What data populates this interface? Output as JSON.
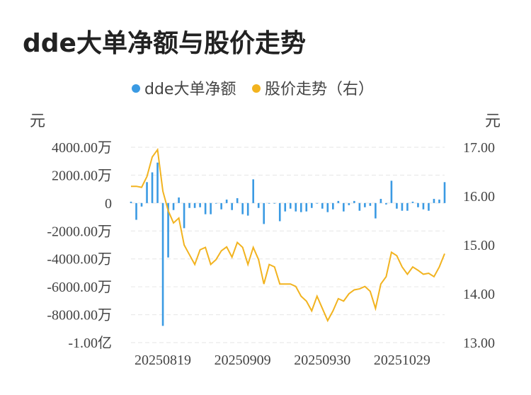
{
  "chart_data": {
    "type": "bar+line",
    "title": "dde大单净额与股价走势",
    "legend": [
      {
        "name": "dde大单净额",
        "color": "#3a9ae3"
      },
      {
        "name": "股价走势（右）",
        "color": "#f2b31f"
      }
    ],
    "left_unit": "元",
    "right_unit": "元",
    "left_ticks": [
      "4000.00万",
      "2000.00万",
      "0",
      "-2000.00万",
      "-4000.00万",
      "-6000.00万",
      "-8000.00万",
      "-1.00亿"
    ],
    "left_range_wan": [
      -10000,
      4000
    ],
    "right_ticks": [
      "17.00",
      "16.00",
      "15.00",
      "14.00",
      "13.00"
    ],
    "right_range": [
      13.0,
      17.0
    ],
    "x_tick_labels": [
      "20250819",
      "20250909",
      "20250930",
      "20251029"
    ],
    "x_tick_indices": [
      6,
      21,
      36,
      51
    ],
    "series": [
      {
        "name": "dde大单净额",
        "unit": "万元",
        "values": [
          100,
          -1200,
          -250,
          1500,
          2200,
          2900,
          -8800,
          -3900,
          -500,
          400,
          -1800,
          -350,
          -350,
          -300,
          -800,
          -800,
          0,
          -450,
          250,
          -500,
          350,
          -800,
          -900,
          1700,
          -350,
          -1500,
          0,
          0,
          -1300,
          -600,
          -400,
          -600,
          -650,
          -600,
          -350,
          0,
          -400,
          -650,
          -450,
          150,
          -600,
          -150,
          150,
          -550,
          -300,
          -200,
          -1100,
          300,
          -100,
          1600,
          -400,
          -550,
          -550,
          100,
          -300,
          -450,
          -550,
          300,
          250,
          1500
        ]
      },
      {
        "name": "股价走势（右）",
        "values": [
          16.2,
          16.2,
          16.18,
          16.4,
          16.8,
          16.95,
          16.1,
          15.7,
          15.45,
          15.55,
          15.0,
          14.8,
          14.6,
          14.9,
          14.95,
          14.6,
          14.7,
          14.88,
          14.96,
          14.75,
          15.05,
          14.95,
          14.6,
          14.95,
          14.7,
          14.2,
          14.6,
          14.55,
          14.2,
          14.2,
          14.2,
          14.15,
          13.95,
          13.85,
          13.65,
          13.95,
          13.7,
          13.45,
          13.65,
          13.9,
          13.85,
          14.0,
          14.08,
          14.1,
          14.15,
          14.05,
          13.7,
          14.2,
          14.35,
          14.85,
          14.78,
          14.55,
          14.4,
          14.55,
          14.48,
          14.4,
          14.42,
          14.35,
          14.55,
          14.82
        ]
      }
    ]
  }
}
